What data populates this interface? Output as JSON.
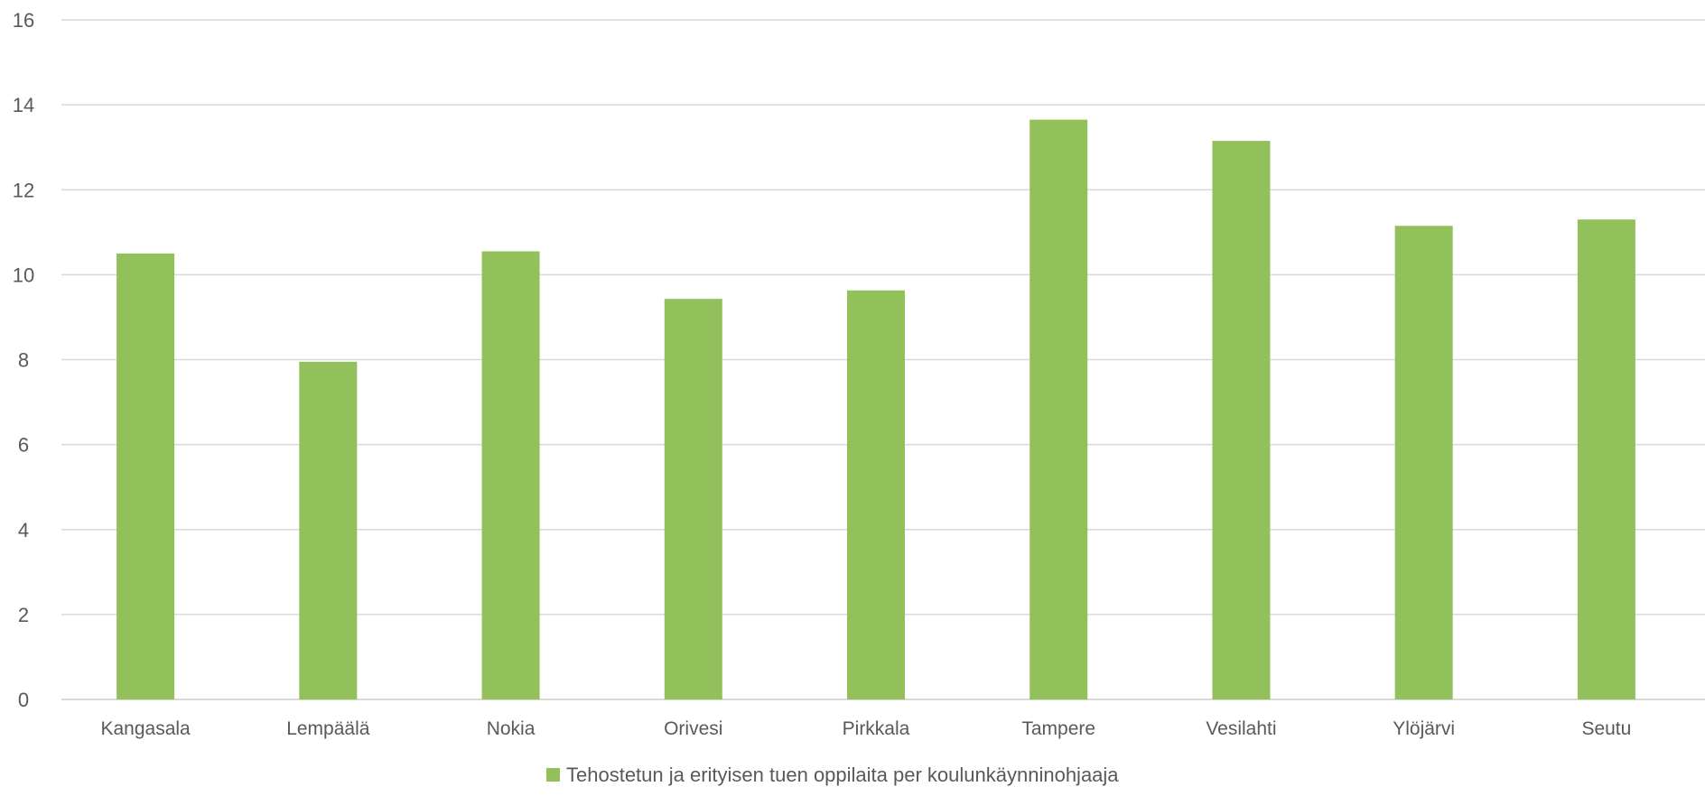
{
  "chart_data": {
    "type": "bar",
    "title": "",
    "xlabel": "",
    "ylabel": "",
    "categories": [
      "Kangasala",
      "Lempäälä",
      "Nokia",
      "Orivesi",
      "Pirkkala",
      "Tampere",
      "Vesilahti",
      "Ylöjärvi",
      "Seutu"
    ],
    "series": [
      {
        "name": "Tehostetun ja erityisen tuen oppilaita per koulunkäynninohjaaja",
        "values": [
          10.5,
          7.95,
          10.55,
          9.43,
          9.63,
          13.65,
          13.15,
          11.15,
          11.3
        ],
        "color": "#92c05a"
      }
    ],
    "ylim": [
      0,
      16
    ],
    "yticks": [
      0,
      2,
      4,
      6,
      8,
      10,
      12,
      14,
      16
    ],
    "grid": true,
    "legend_position": "bottom",
    "colors": {
      "bar": "#92c05a",
      "grid": "#d9d9d9",
      "text": "#595959"
    }
  }
}
